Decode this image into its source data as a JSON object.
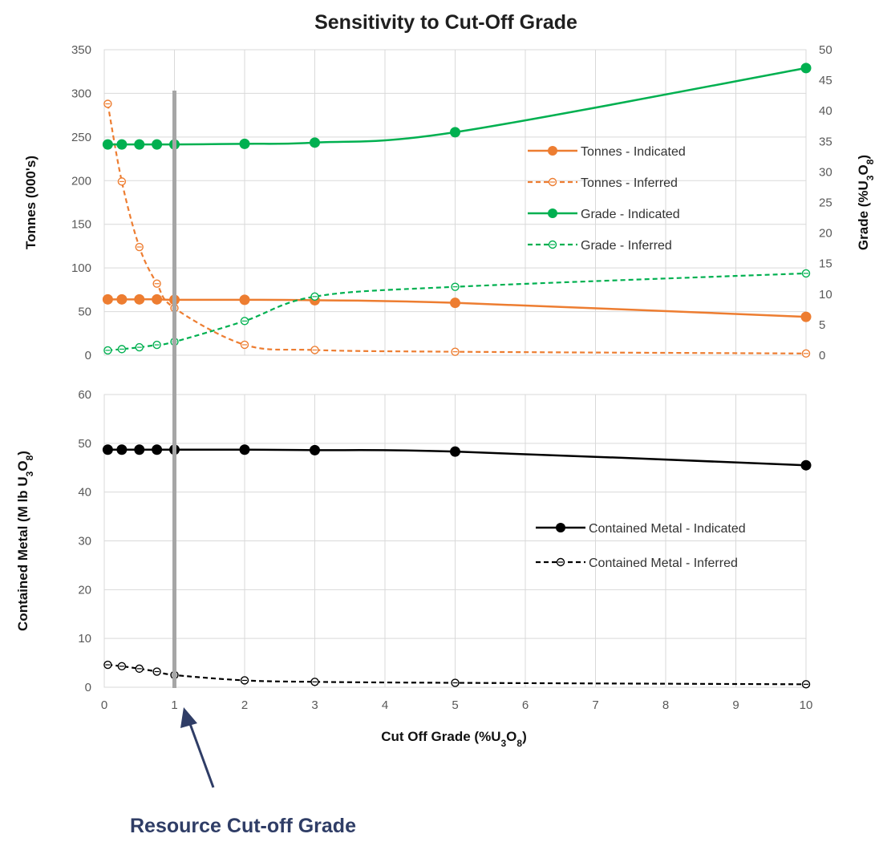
{
  "chart_data": {
    "title": "Sensitivity to Cut-Off Grade",
    "xlabel": "Cut Off Grade (%U3O8)",
    "x_ticks": [
      "0",
      "1",
      "2",
      "3",
      "4",
      "5",
      "6",
      "7",
      "8",
      "9",
      "10"
    ],
    "xlim": [
      0,
      10
    ],
    "grid": true,
    "annotation": {
      "text": "Resource Cut-off Grade",
      "x": 1
    },
    "panels": [
      {
        "name": "top",
        "type": "line",
        "ylabel_left": "Tonnes (000's)",
        "ylabel_right": "Grade (%U3O8)",
        "ylim_left": [
          0,
          350
        ],
        "ylim_right": [
          0,
          50
        ],
        "y_ticks_left": [
          "0",
          "50",
          "100",
          "150",
          "200",
          "250",
          "300",
          "350"
        ],
        "y_ticks_right": [
          "0",
          "5",
          "10",
          "15",
          "20",
          "25",
          "30",
          "35",
          "40",
          "45",
          "50"
        ],
        "legend_position": "center-right",
        "series": [
          {
            "name": "Tonnes - Indicated",
            "axis": "left",
            "color": "#ed7d31",
            "dashed": false,
            "filled": true,
            "x": [
              0.05,
              0.25,
              0.5,
              0.75,
              1,
              2,
              3,
              5,
              10
            ],
            "y": [
              64,
              64,
              64,
              64,
              63.5,
              63.5,
              63,
              60,
              44
            ]
          },
          {
            "name": "Tonnes - Inferred",
            "axis": "left",
            "color": "#ed7d31",
            "dashed": true,
            "filled": false,
            "x": [
              0.05,
              0.25,
              0.5,
              0.75,
              1,
              2,
              3,
              5,
              10
            ],
            "y": [
              288,
              199,
              124,
              82,
              54,
              12,
              6,
              4,
              2
            ]
          },
          {
            "name": "Grade - Indicated",
            "axis": "right",
            "color": "#00b050",
            "dashed": false,
            "filled": true,
            "x": [
              0.05,
              0.25,
              0.5,
              0.75,
              1,
              2,
              3,
              5,
              10
            ],
            "y": [
              34.5,
              34.5,
              34.5,
              34.5,
              34.5,
              34.6,
              34.8,
              36.5,
              47
            ]
          },
          {
            "name": "Grade - Inferred",
            "axis": "right",
            "color": "#00b050",
            "dashed": true,
            "filled": false,
            "x": [
              0.05,
              0.25,
              0.5,
              0.75,
              1,
              2,
              3,
              5,
              10
            ],
            "y": [
              0.8,
              1.0,
              1.3,
              1.7,
              2.2,
              5.6,
              9.6,
              11.2,
              13.4
            ]
          }
        ]
      },
      {
        "name": "bottom",
        "type": "line",
        "ylabel_left": "Contained Metal (M lb U3O8)",
        "ylim_left": [
          0,
          60
        ],
        "y_ticks_left": [
          "0",
          "10",
          "20",
          "30",
          "40",
          "50",
          "60"
        ],
        "legend_position": "center-right",
        "series": [
          {
            "name": "Contained Metal - Indicated",
            "axis": "left",
            "color": "#000000",
            "dashed": false,
            "filled": true,
            "x": [
              0.05,
              0.25,
              0.5,
              0.75,
              1,
              2,
              3,
              5,
              10
            ],
            "y": [
              48.7,
              48.7,
              48.7,
              48.7,
              48.7,
              48.7,
              48.6,
              48.3,
              45.5
            ]
          },
          {
            "name": "Contained Metal - Inferred",
            "axis": "left",
            "color": "#000000",
            "dashed": true,
            "filled": false,
            "x": [
              0.05,
              0.25,
              0.5,
              0.75,
              1,
              2,
              3,
              5,
              10
            ],
            "y": [
              4.6,
              4.3,
              3.8,
              3.2,
              2.5,
              1.4,
              1.1,
              0.9,
              0.6
            ]
          }
        ]
      }
    ]
  }
}
